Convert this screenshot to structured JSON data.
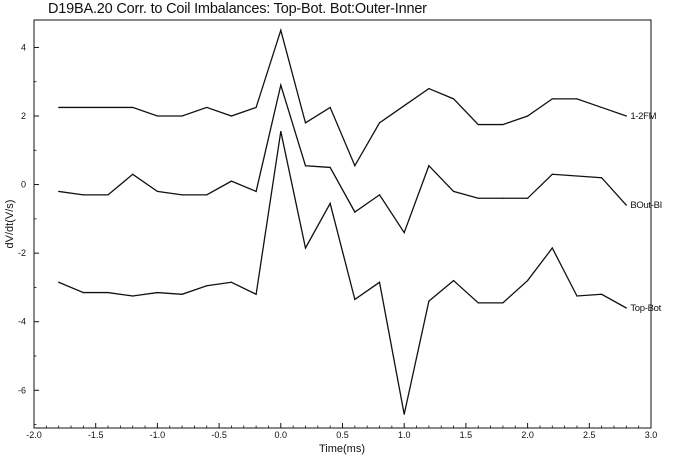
{
  "chart_data": {
    "type": "line",
    "title": "D19BA.20 Corr. to Coil Imbalances: Top-Bot. Bot:Outer-Inner",
    "xlabel": "Time(ms)",
    "ylabel": "dV/dt(V/s)",
    "xlim": [
      -2.0,
      3.0
    ],
    "ylim": [
      -7.1,
      4.8
    ],
    "grid": false,
    "legend": "inline labels at right end of each series",
    "xticks": [
      "-2.0",
      "-1.5",
      "-1.0",
      "-0.5",
      "0.0",
      "0.5",
      "1.0",
      "1.5",
      "2.0",
      "2.5",
      "3.0"
    ],
    "xtick_values": [
      -2.0,
      -1.5,
      -1.0,
      -0.5,
      0.0,
      0.5,
      1.0,
      1.5,
      2.0,
      2.5,
      3.0
    ],
    "yticks": [
      "4",
      "2",
      "0",
      "-2",
      "-4",
      "-6"
    ],
    "ytick_values": [
      4,
      2,
      0,
      -2,
      -4,
      -6
    ],
    "x": [
      -1.8,
      -1.6,
      -1.4,
      -1.2,
      -1.0,
      -0.8,
      -0.6,
      -0.4,
      -0.2,
      0.0,
      0.2,
      0.4,
      0.6,
      0.8,
      1.0,
      1.2,
      1.4,
      1.6,
      1.8,
      2.0,
      2.2,
      2.4,
      2.6,
      2.8
    ],
    "series": [
      {
        "name": "1-2FM",
        "values": [
          2.25,
          2.25,
          2.25,
          2.25,
          2.0,
          2.0,
          2.25,
          2.0,
          2.25,
          4.5,
          1.8,
          2.25,
          0.55,
          1.8,
          2.3,
          2.8,
          2.5,
          1.75,
          1.75,
          2.0,
          2.5,
          2.5,
          2.25,
          2.0
        ]
      },
      {
        "name": "BOut-BI",
        "values": [
          -0.2,
          -0.3,
          -0.3,
          0.3,
          -0.2,
          -0.3,
          -0.3,
          0.1,
          -0.2,
          2.9,
          0.55,
          0.5,
          -0.8,
          -0.3,
          -1.4,
          0.55,
          -0.2,
          -0.4,
          -0.4,
          -0.4,
          0.3,
          0.25,
          0.2,
          -0.6
        ]
      },
      {
        "name": "Top-Bot",
        "values": [
          -2.85,
          -3.15,
          -3.15,
          -3.25,
          -3.15,
          -3.2,
          -2.95,
          -2.85,
          -3.2,
          1.55,
          -1.85,
          -0.55,
          -3.35,
          -2.85,
          -6.7,
          -3.4,
          -2.8,
          -3.45,
          -3.45,
          -2.8,
          -1.85,
          -3.25,
          -3.2,
          -3.6
        ]
      }
    ]
  }
}
